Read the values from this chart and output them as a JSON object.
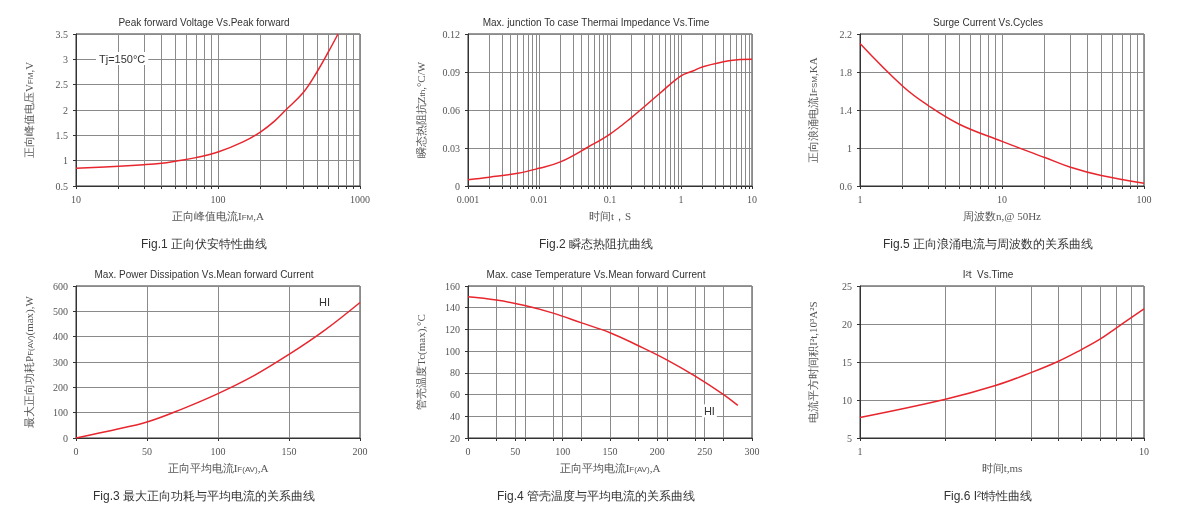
{
  "chart_data": [
    {
      "type": "line",
      "title": "Peak forward Voltage Vs.Peak forward",
      "xlabel": "正向峰值电流I$_{FM}$,A",
      "ylabel": "正向峰值电压V$_{FM}$,V",
      "annotations": [
        "Fig.1 正向伏安特性曲线",
        "Tj=150°C"
      ],
      "log": "x",
      "grid": true,
      "marker": "none",
      "color": "#e8262e",
      "x": [
        10,
        20,
        30,
        40,
        50,
        70,
        100,
        150,
        200,
        250,
        300,
        400,
        500,
        600,
        700
      ],
      "values": [
        0.85,
        0.89,
        0.92,
        0.95,
        0.99,
        1.06,
        1.17,
        1.37,
        1.57,
        1.78,
        2.0,
        2.35,
        2.76,
        3.15,
        3.5
      ],
      "xlim": [
        10,
        1000
      ],
      "xticks": [
        10,
        {
          "value": 20,
          "label": null
        },
        {
          "value": 30,
          "label": null
        },
        {
          "value": 40,
          "label": null
        },
        {
          "value": 50,
          "label": null
        },
        {
          "value": 60,
          "label": null
        },
        {
          "value": 70,
          "label": null
        },
        {
          "value": 80,
          "label": null
        },
        {
          "value": 90,
          "label": null
        },
        100,
        {
          "value": 200,
          "label": null
        },
        {
          "value": 300,
          "label": null
        },
        {
          "value": 400,
          "label": null
        },
        {
          "value": 500,
          "label": null
        },
        {
          "value": 600,
          "label": null
        },
        {
          "value": 700,
          "label": null
        },
        {
          "value": 800,
          "label": null
        },
        {
          "value": 900,
          "label": null
        },
        1000
      ],
      "ylim": [
        0.5,
        3.5
      ],
      "yticks": [
        0.5,
        1,
        1.5,
        2,
        2.5,
        3,
        3.5
      ]
    },
    {
      "type": "line",
      "title": "Max. junction To case Thermai Impedance Vs.Time",
      "xlabel": "时间t，S",
      "ylabel": "瞬态热阻抗Z$_{th}$,°C/W",
      "annotations": [
        "Fig.2 瞬态热阻抗曲线"
      ],
      "log": "x",
      "grid": true,
      "marker": "none",
      "color": "#e8262e",
      "x": [
        0.001,
        0.002,
        0.005,
        0.01,
        0.02,
        0.05,
        0.1,
        0.2,
        0.5,
        1,
        1.5,
        2,
        5,
        10
      ],
      "values": [
        0.005,
        0.007,
        0.01,
        0.014,
        0.019,
        0.031,
        0.041,
        0.054,
        0.073,
        0.087,
        0.091,
        0.094,
        0.099,
        0.1
      ],
      "xlim": [
        0.001,
        10
      ],
      "xticks": [
        0.001,
        {
          "value": 0.002,
          "label": null
        },
        {
          "value": 0.003,
          "label": null
        },
        {
          "value": 0.004,
          "label": null
        },
        {
          "value": 0.005,
          "label": null
        },
        {
          "value": 0.006,
          "label": null
        },
        {
          "value": 0.007,
          "label": null
        },
        {
          "value": 0.008,
          "label": null
        },
        {
          "value": 0.009,
          "label": null
        },
        0.01,
        {
          "value": 0.02,
          "label": null
        },
        {
          "value": 0.03,
          "label": null
        },
        {
          "value": 0.04,
          "label": null
        },
        {
          "value": 0.05,
          "label": null
        },
        {
          "value": 0.06,
          "label": null
        },
        {
          "value": 0.07,
          "label": null
        },
        {
          "value": 0.08,
          "label": null
        },
        {
          "value": 0.09,
          "label": null
        },
        0.1,
        {
          "value": 0.2,
          "label": null
        },
        {
          "value": 0.3,
          "label": null
        },
        {
          "value": 0.4,
          "label": null
        },
        {
          "value": 0.5,
          "label": null
        },
        {
          "value": 0.6,
          "label": null
        },
        {
          "value": 0.7,
          "label": null
        },
        {
          "value": 0.8,
          "label": null
        },
        {
          "value": 0.9,
          "label": null
        },
        1,
        {
          "value": 2,
          "label": null
        },
        {
          "value": 3,
          "label": null
        },
        {
          "value": 4,
          "label": null
        },
        {
          "value": 5,
          "label": null
        },
        {
          "value": 6,
          "label": null
        },
        {
          "value": 7,
          "label": null
        },
        {
          "value": 8,
          "label": null
        },
        {
          "value": 9,
          "label": null
        },
        10
      ],
      "ylim": [
        0,
        0.12
      ],
      "yticks": [
        0,
        0.03,
        0.06,
        0.09,
        0.12
      ]
    },
    {
      "type": "line",
      "title": "Surge Current Vs.Cycles",
      "xlabel": "周波数n,@ 50Hz",
      "ylabel": "正向浪涌电流I$_{FSM}$,KA",
      "annotations": [
        "Fig.5 正向浪涌电流与周波数的关系曲线"
      ],
      "log": "x",
      "grid": true,
      "marker": "none",
      "color": "#e8262e",
      "x": [
        1,
        2,
        3,
        5,
        10,
        20,
        30,
        50,
        100
      ],
      "values": [
        2.1,
        1.65,
        1.45,
        1.25,
        1.07,
        0.9,
        0.8,
        0.71,
        0.63
      ],
      "xlim": [
        1,
        100
      ],
      "xticks": [
        1,
        {
          "value": 2,
          "label": null
        },
        {
          "value": 3,
          "label": null
        },
        {
          "value": 4,
          "label": null
        },
        {
          "value": 5,
          "label": null
        },
        {
          "value": 6,
          "label": null
        },
        {
          "value": 7,
          "label": null
        },
        {
          "value": 8,
          "label": null
        },
        {
          "value": 9,
          "label": null
        },
        10,
        {
          "value": 20,
          "label": null
        },
        {
          "value": 30,
          "label": null
        },
        {
          "value": 40,
          "label": null
        },
        {
          "value": 50,
          "label": null
        },
        {
          "value": 60,
          "label": null
        },
        {
          "value": 70,
          "label": null
        },
        {
          "value": 80,
          "label": null
        },
        {
          "value": 90,
          "label": null
        },
        100
      ],
      "ylim": [
        0.6,
        2.2
      ],
      "yticks": [
        0.6,
        1,
        1.4,
        1.8,
        2.2
      ]
    },
    {
      "type": "line",
      "title": "Max. Power Dissipation Vs.Mean forward Current",
      "xlabel": "正向平均电流I$_{F(AV)}$,A",
      "ylabel": "最大正向功耗P$_{F(AV)}$(max),W",
      "annotations": [
        "Fig.3 最大正向功耗与平均电流的关系曲线",
        {
          "text": "HI",
          "x": 175,
          "y": 535
        }
      ],
      "grid": true,
      "marker": "none",
      "color": "#e8262e",
      "x": [
        0,
        10,
        25,
        50,
        75,
        100,
        125,
        150,
        175,
        200
      ],
      "values": [
        0,
        12,
        30,
        63,
        115,
        175,
        245,
        330,
        425,
        535
      ],
      "xlim": [
        0,
        200
      ],
      "xticks": [
        0,
        50,
        100,
        150,
        200
      ],
      "ylim": [
        0,
        600
      ],
      "yticks": [
        0,
        100,
        200,
        300,
        400,
        500,
        600
      ]
    },
    {
      "type": "line",
      "title": "Max. case Temperature Vs.Mean forward Current",
      "xlabel": "正向平均电流I$_{F(AV)}$,A",
      "ylabel": "管壳温度Tc(max),°C",
      "annotations": [
        "Fig.4 管壳温度与平均电流的关系曲线",
        {
          "text": "HI",
          "x": 255,
          "y": 45
        }
      ],
      "grid": true,
      "marker": "none",
      "color": "#e8262e",
      "x": [
        0,
        30,
        60,
        90,
        120,
        150,
        180,
        210,
        240,
        270,
        285
      ],
      "values": [
        150,
        147,
        142,
        135,
        126,
        117,
        105,
        92,
        77,
        60,
        50
      ],
      "xlim": [
        0,
        300
      ],
      "xticks": [
        0,
        {
          "value": 30,
          "label": null
        },
        50,
        {
          "value": 60,
          "label": null
        },
        {
          "value": 90,
          "label": null
        },
        100,
        {
          "value": 120,
          "label": null
        },
        150,
        {
          "value": 180,
          "label": null
        },
        200,
        {
          "value": 210,
          "label": null
        },
        {
          "value": 240,
          "label": null
        },
        250,
        {
          "value": 270,
          "label": null
        },
        300
      ],
      "ylim": [
        20,
        160
      ],
      "yticks": [
        20,
        40,
        60,
        80,
        100,
        120,
        140,
        160
      ]
    },
    {
      "type": "line",
      "title": "I²t  Vs.Time",
      "xlabel": "时间t,ms",
      "ylabel": "电流平方时间积I²t,10³A²S",
      "annotations": [
        "Fig.6 I²t特性曲线"
      ],
      "log": "x",
      "grid": true,
      "marker": "none",
      "color": "#e8262e",
      "x": [
        1,
        2,
        3,
        4,
        5,
        6,
        7,
        8,
        10
      ],
      "values": [
        7.7,
        10.1,
        11.9,
        13.6,
        15.1,
        16.6,
        18.0,
        19.5,
        22
      ],
      "xlim": [
        1,
        10
      ],
      "xticks": [
        1,
        {
          "value": 2,
          "label": null
        },
        {
          "value": 3,
          "label": null
        },
        {
          "value": 4,
          "label": null
        },
        {
          "value": 5,
          "label": null
        },
        {
          "value": 6,
          "label": null
        },
        {
          "value": 7,
          "label": null
        },
        {
          "value": 8,
          "label": null
        },
        {
          "value": 9,
          "label": null
        },
        10
      ],
      "ylim": [
        5,
        25
      ],
      "yticks": [
        5,
        10,
        15,
        20,
        25
      ]
    }
  ]
}
